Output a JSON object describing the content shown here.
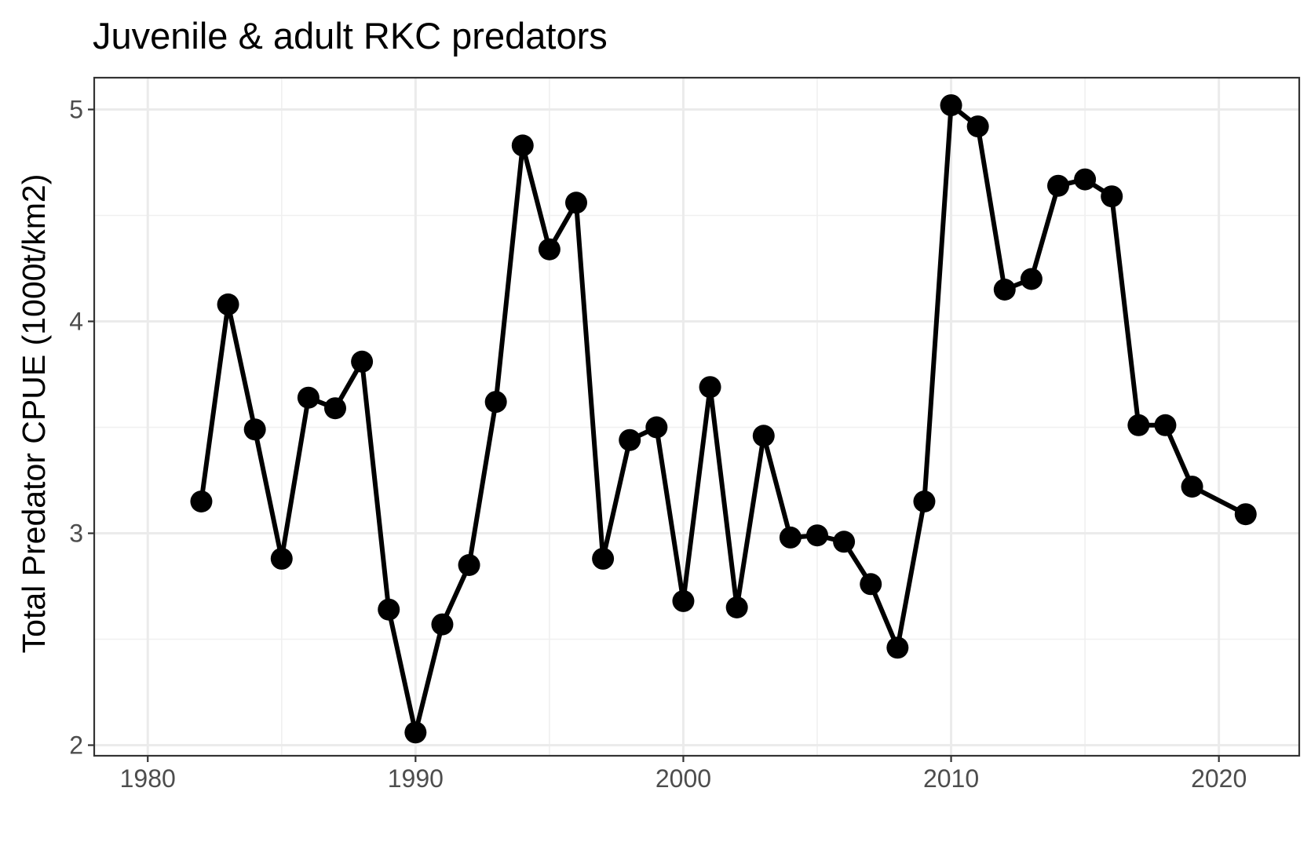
{
  "chart_data": {
    "type": "line",
    "title": "Juvenile & adult RKC predators",
    "xlabel": "",
    "ylabel": "Total Predator CPUE (1000t/km2)",
    "xlim": [
      1978,
      2023
    ],
    "ylim": [
      1.95,
      5.15
    ],
    "x_ticks": [
      1980,
      1990,
      2000,
      2010,
      2020
    ],
    "y_ticks": [
      2,
      3,
      4,
      5
    ],
    "grid": true,
    "legend": "none",
    "series": [
      {
        "x": [
          1982,
          1983,
          1984,
          1985,
          1986,
          1987,
          1988,
          1989,
          1990,
          1991,
          1992,
          1993,
          1994,
          1995,
          1996,
          1997,
          1998,
          1999,
          2000,
          2001,
          2002,
          2003,
          2004,
          2005,
          2006,
          2007,
          2008,
          2009,
          2010,
          2011,
          2012,
          2013,
          2014,
          2015,
          2016,
          2017,
          2018,
          2019,
          2021
        ],
        "y": [
          3.15,
          4.08,
          3.49,
          2.88,
          3.64,
          3.59,
          3.81,
          2.64,
          2.06,
          2.57,
          2.85,
          3.62,
          4.83,
          4.34,
          4.56,
          2.88,
          3.44,
          3.5,
          2.68,
          3.69,
          2.65,
          3.46,
          2.98,
          2.99,
          2.96,
          2.76,
          2.46,
          3.15,
          5.02,
          4.92,
          4.15,
          4.2,
          4.64,
          4.67,
          4.59,
          3.51,
          3.51,
          3.22,
          3.09
        ],
        "color": "#000000"
      }
    ]
  }
}
